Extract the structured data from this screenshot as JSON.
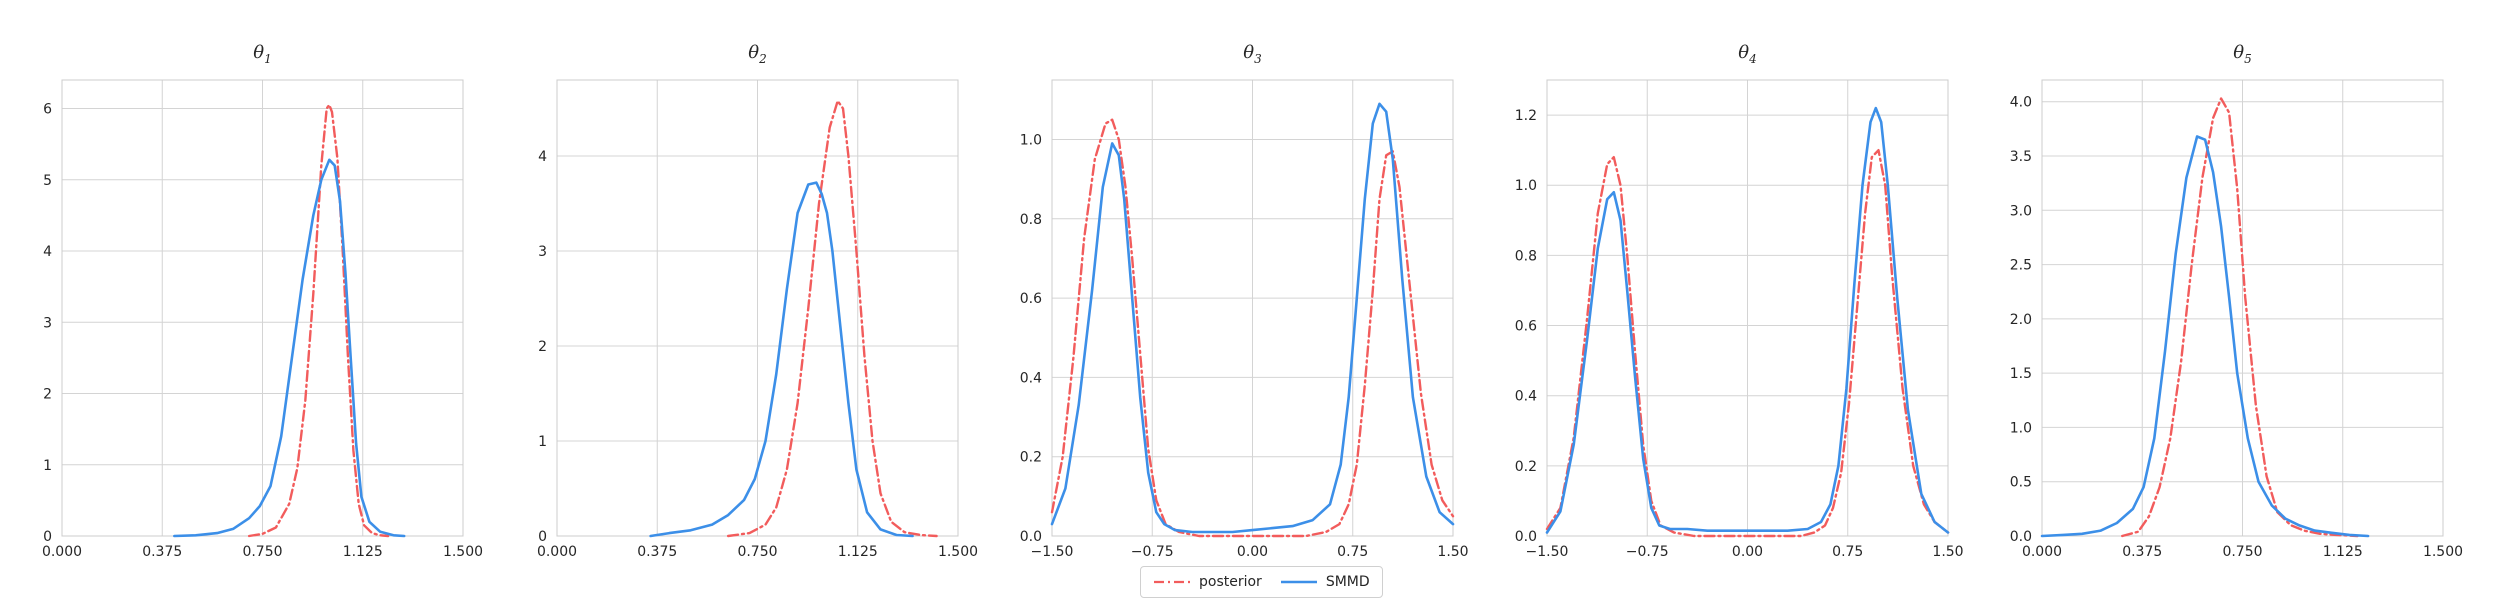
{
  "chart_data": [
    {
      "type": "line",
      "title": "θ1",
      "title_base": "θ",
      "title_sub": "1",
      "xlim": [
        0,
        1.5
      ],
      "ylim": [
        0,
        6.4
      ],
      "xticks": [
        "0.000",
        "0.375",
        "0.750",
        "1.125",
        "1.500"
      ],
      "xtick_values": [
        0,
        0.375,
        0.75,
        1.125,
        1.5
      ],
      "yticks": [
        "0",
        "1",
        "2",
        "3",
        "4",
        "5",
        "6"
      ],
      "ytick_values": [
        0,
        1,
        2,
        3,
        4,
        5,
        6
      ],
      "grid": true,
      "series": [
        {
          "name": "posterior",
          "color": "#f25c5c",
          "style": "dashdot",
          "x": [
            0.7,
            0.75,
            0.8,
            0.85,
            0.88,
            0.91,
            0.94,
            0.97,
            0.99,
            1.0,
            1.01,
            1.03,
            1.05,
            1.07,
            1.09,
            1.11,
            1.13,
            1.16,
            1.19,
            1.22
          ],
          "y": [
            0.0,
            0.03,
            0.12,
            0.45,
            0.95,
            1.9,
            3.4,
            5.2,
            6.0,
            6.05,
            5.95,
            5.3,
            4.0,
            2.5,
            1.2,
            0.45,
            0.15,
            0.04,
            0.01,
            0.0
          ]
        },
        {
          "name": "SMMD",
          "color": "#3c8fe8",
          "style": "solid",
          "x": [
            0.42,
            0.5,
            0.58,
            0.64,
            0.7,
            0.74,
            0.78,
            0.82,
            0.86,
            0.9,
            0.94,
            0.97,
            1.0,
            1.02,
            1.04,
            1.06,
            1.08,
            1.1,
            1.12,
            1.15,
            1.19,
            1.24,
            1.28
          ],
          "y": [
            0.0,
            0.01,
            0.04,
            0.1,
            0.25,
            0.42,
            0.7,
            1.4,
            2.5,
            3.6,
            4.5,
            5.0,
            5.28,
            5.2,
            4.7,
            3.7,
            2.5,
            1.3,
            0.55,
            0.2,
            0.06,
            0.01,
            0.0
          ]
        }
      ]
    },
    {
      "type": "line",
      "title": "θ2",
      "title_base": "θ",
      "title_sub": "2",
      "xlim": [
        0,
        1.5
      ],
      "ylim": [
        0,
        4.8
      ],
      "xticks": [
        "0.000",
        "0.375",
        "0.750",
        "1.125",
        "1.500"
      ],
      "xtick_values": [
        0,
        0.375,
        0.75,
        1.125,
        1.5
      ],
      "yticks": [
        "0",
        "1",
        "2",
        "3",
        "4"
      ],
      "ytick_values": [
        0,
        1,
        2,
        3,
        4
      ],
      "grid": true,
      "series": [
        {
          "name": "posterior",
          "color": "#f25c5c",
          "style": "dashdot",
          "x": [
            0.64,
            0.72,
            0.78,
            0.82,
            0.86,
            0.9,
            0.94,
            0.98,
            1.02,
            1.05,
            1.07,
            1.09,
            1.12,
            1.15,
            1.18,
            1.21,
            1.25,
            1.3,
            1.36,
            1.42
          ],
          "y": [
            0.0,
            0.03,
            0.12,
            0.3,
            0.7,
            1.4,
            2.4,
            3.5,
            4.3,
            4.58,
            4.5,
            4.0,
            3.0,
            1.9,
            1.0,
            0.45,
            0.15,
            0.04,
            0.01,
            0.0
          ]
        },
        {
          "name": "SMMD",
          "color": "#3c8fe8",
          "style": "solid",
          "x": [
            0.35,
            0.42,
            0.5,
            0.58,
            0.64,
            0.7,
            0.74,
            0.78,
            0.82,
            0.86,
            0.9,
            0.94,
            0.97,
            0.99,
            1.01,
            1.03,
            1.06,
            1.09,
            1.12,
            1.16,
            1.21,
            1.27,
            1.33
          ],
          "y": [
            0.0,
            0.03,
            0.06,
            0.12,
            0.22,
            0.38,
            0.6,
            1.0,
            1.7,
            2.6,
            3.4,
            3.7,
            3.72,
            3.6,
            3.4,
            3.0,
            2.2,
            1.4,
            0.7,
            0.25,
            0.07,
            0.01,
            0.0
          ]
        }
      ]
    },
    {
      "type": "line",
      "title": "θ3",
      "title_base": "θ",
      "title_sub": "3",
      "xlim": [
        -1.5,
        1.5
      ],
      "ylim": [
        0,
        1.15
      ],
      "xticks": [
        "−1.50",
        "−0.75",
        "0.00",
        "0.75",
        "1.50"
      ],
      "xtick_values": [
        -1.5,
        -0.75,
        0,
        0.75,
        1.5
      ],
      "yticks": [
        "0.0",
        "0.2",
        "0.4",
        "0.6",
        "0.8",
        "1.0"
      ],
      "ytick_values": [
        0,
        0.2,
        0.4,
        0.6,
        0.8,
        1.0
      ],
      "grid": true,
      "series": [
        {
          "name": "posterior",
          "color": "#f25c5c",
          "style": "dashdot",
          "x": [
            -1.5,
            -1.42,
            -1.34,
            -1.26,
            -1.18,
            -1.1,
            -1.05,
            -1.0,
            -0.95,
            -0.9,
            -0.84,
            -0.78,
            -0.72,
            -0.65,
            -0.55,
            -0.4,
            -0.2,
            0.0,
            0.2,
            0.4,
            0.55,
            0.65,
            0.72,
            0.78,
            0.84,
            0.9,
            0.95,
            1.0,
            1.05,
            1.1,
            1.18,
            1.26,
            1.34,
            1.42,
            1.5
          ],
          "y": [
            0.06,
            0.2,
            0.45,
            0.75,
            0.95,
            1.04,
            1.05,
            1.0,
            0.88,
            0.7,
            0.46,
            0.22,
            0.09,
            0.03,
            0.01,
            0.0,
            0.0,
            0.0,
            0.0,
            0.0,
            0.01,
            0.03,
            0.08,
            0.18,
            0.38,
            0.62,
            0.85,
            0.96,
            0.97,
            0.88,
            0.62,
            0.36,
            0.18,
            0.09,
            0.05
          ]
        },
        {
          "name": "SMMD",
          "color": "#3c8fe8",
          "style": "solid",
          "x": [
            -1.5,
            -1.4,
            -1.3,
            -1.2,
            -1.12,
            -1.05,
            -1.0,
            -0.96,
            -0.9,
            -0.84,
            -0.78,
            -0.72,
            -0.66,
            -0.58,
            -0.45,
            -0.3,
            -0.15,
            0.0,
            0.15,
            0.3,
            0.45,
            0.58,
            0.66,
            0.72,
            0.78,
            0.84,
            0.9,
            0.95,
            1.0,
            1.05,
            1.12,
            1.2,
            1.3,
            1.4,
            1.5
          ],
          "y": [
            0.03,
            0.12,
            0.33,
            0.62,
            0.88,
            0.99,
            0.96,
            0.85,
            0.6,
            0.35,
            0.16,
            0.06,
            0.03,
            0.015,
            0.01,
            0.01,
            0.01,
            0.015,
            0.02,
            0.025,
            0.04,
            0.08,
            0.18,
            0.35,
            0.6,
            0.85,
            1.04,
            1.09,
            1.07,
            0.95,
            0.65,
            0.35,
            0.15,
            0.06,
            0.03
          ]
        }
      ]
    },
    {
      "type": "line",
      "title": "θ4",
      "title_base": "θ",
      "title_sub": "4",
      "xlim": [
        -1.5,
        1.5
      ],
      "ylim": [
        0,
        1.3
      ],
      "xticks": [
        "−1.50",
        "−0.75",
        "0.00",
        "0.75",
        "1.50"
      ],
      "xtick_values": [
        -1.5,
        -0.75,
        0,
        0.75,
        1.5
      ],
      "yticks": [
        "0.0",
        "0.2",
        "0.4",
        "0.6",
        "0.8",
        "1.0",
        "1.2"
      ],
      "ytick_values": [
        0,
        0.2,
        0.4,
        0.6,
        0.8,
        1.0,
        1.2
      ],
      "grid": true,
      "series": [
        {
          "name": "posterior",
          "color": "#f25c5c",
          "style": "dashdot",
          "x": [
            -1.5,
            -1.4,
            -1.3,
            -1.2,
            -1.12,
            -1.05,
            -1.0,
            -0.95,
            -0.9,
            -0.84,
            -0.78,
            -0.72,
            -0.65,
            -0.55,
            -0.4,
            -0.2,
            0.0,
            0.2,
            0.4,
            0.5,
            0.58,
            0.64,
            0.7,
            0.76,
            0.82,
            0.88,
            0.93,
            0.98,
            1.03,
            1.08,
            1.16,
            1.24,
            1.32,
            1.4,
            1.5
          ],
          "y": [
            0.02,
            0.08,
            0.28,
            0.62,
            0.92,
            1.06,
            1.08,
            1.0,
            0.8,
            0.52,
            0.26,
            0.1,
            0.03,
            0.01,
            0.0,
            0.0,
            0.0,
            0.0,
            0.0,
            0.01,
            0.03,
            0.08,
            0.18,
            0.38,
            0.65,
            0.92,
            1.08,
            1.1,
            1.0,
            0.75,
            0.42,
            0.2,
            0.09,
            0.04,
            0.01
          ]
        },
        {
          "name": "SMMD",
          "color": "#3c8fe8",
          "style": "solid",
          "x": [
            -1.5,
            -1.4,
            -1.3,
            -1.2,
            -1.12,
            -1.05,
            -1.0,
            -0.95,
            -0.9,
            -0.84,
            -0.78,
            -0.72,
            -0.66,
            -0.58,
            -0.45,
            -0.3,
            -0.15,
            0.0,
            0.15,
            0.3,
            0.45,
            0.55,
            0.62,
            0.68,
            0.74,
            0.8,
            0.86,
            0.92,
            0.96,
            1.0,
            1.05,
            1.12,
            1.2,
            1.3,
            1.4,
            1.5
          ],
          "y": [
            0.01,
            0.07,
            0.26,
            0.56,
            0.82,
            0.96,
            0.98,
            0.9,
            0.7,
            0.45,
            0.22,
            0.08,
            0.03,
            0.02,
            0.02,
            0.015,
            0.015,
            0.015,
            0.015,
            0.015,
            0.02,
            0.04,
            0.09,
            0.2,
            0.42,
            0.72,
            1.0,
            1.18,
            1.22,
            1.18,
            1.0,
            0.68,
            0.36,
            0.12,
            0.04,
            0.01
          ]
        }
      ]
    },
    {
      "type": "line",
      "title": "θ5",
      "title_base": "θ",
      "title_sub": "5",
      "xlim": [
        0,
        1.5
      ],
      "ylim": [
        0,
        4.2
      ],
      "xticks": [
        "0.000",
        "0.375",
        "0.750",
        "1.125",
        "1.500"
      ],
      "xtick_values": [
        0,
        0.375,
        0.75,
        1.125,
        1.5
      ],
      "yticks": [
        "0.0",
        "0.5",
        "1.0",
        "1.5",
        "2.0",
        "2.5",
        "3.0",
        "3.5",
        "4.0"
      ],
      "ytick_values": [
        0,
        0.5,
        1.0,
        1.5,
        2.0,
        2.5,
        3.0,
        3.5,
        4.0
      ],
      "grid": true,
      "series": [
        {
          "name": "posterior",
          "color": "#f25c5c",
          "style": "dashdot",
          "x": [
            0.3,
            0.36,
            0.4,
            0.44,
            0.48,
            0.52,
            0.56,
            0.6,
            0.64,
            0.67,
            0.7,
            0.73,
            0.76,
            0.8,
            0.84,
            0.88,
            0.93,
            0.98,
            1.04,
            1.1,
            1.18
          ],
          "y": [
            0.0,
            0.04,
            0.18,
            0.45,
            0.9,
            1.6,
            2.5,
            3.3,
            3.85,
            4.03,
            3.9,
            3.2,
            2.2,
            1.2,
            0.55,
            0.22,
            0.1,
            0.05,
            0.02,
            0.01,
            0.0
          ]
        },
        {
          "name": "SMMD",
          "color": "#3c8fe8",
          "style": "solid",
          "x": [
            0.0,
            0.08,
            0.15,
            0.22,
            0.28,
            0.34,
            0.38,
            0.42,
            0.46,
            0.5,
            0.54,
            0.58,
            0.61,
            0.64,
            0.67,
            0.7,
            0.73,
            0.77,
            0.81,
            0.86,
            0.91,
            0.96,
            1.02,
            1.08,
            1.15,
            1.22
          ],
          "y": [
            0.0,
            0.01,
            0.02,
            0.05,
            0.12,
            0.25,
            0.45,
            0.9,
            1.7,
            2.6,
            3.3,
            3.68,
            3.65,
            3.35,
            2.85,
            2.2,
            1.5,
            0.9,
            0.5,
            0.28,
            0.16,
            0.1,
            0.05,
            0.03,
            0.01,
            0.0
          ]
        }
      ]
    }
  ],
  "legend": {
    "items": [
      {
        "label": "posterior",
        "color": "#f25c5c",
        "style": "dashdot"
      },
      {
        "label": "SMMD",
        "color": "#3c8fe8",
        "style": "solid"
      }
    ]
  }
}
